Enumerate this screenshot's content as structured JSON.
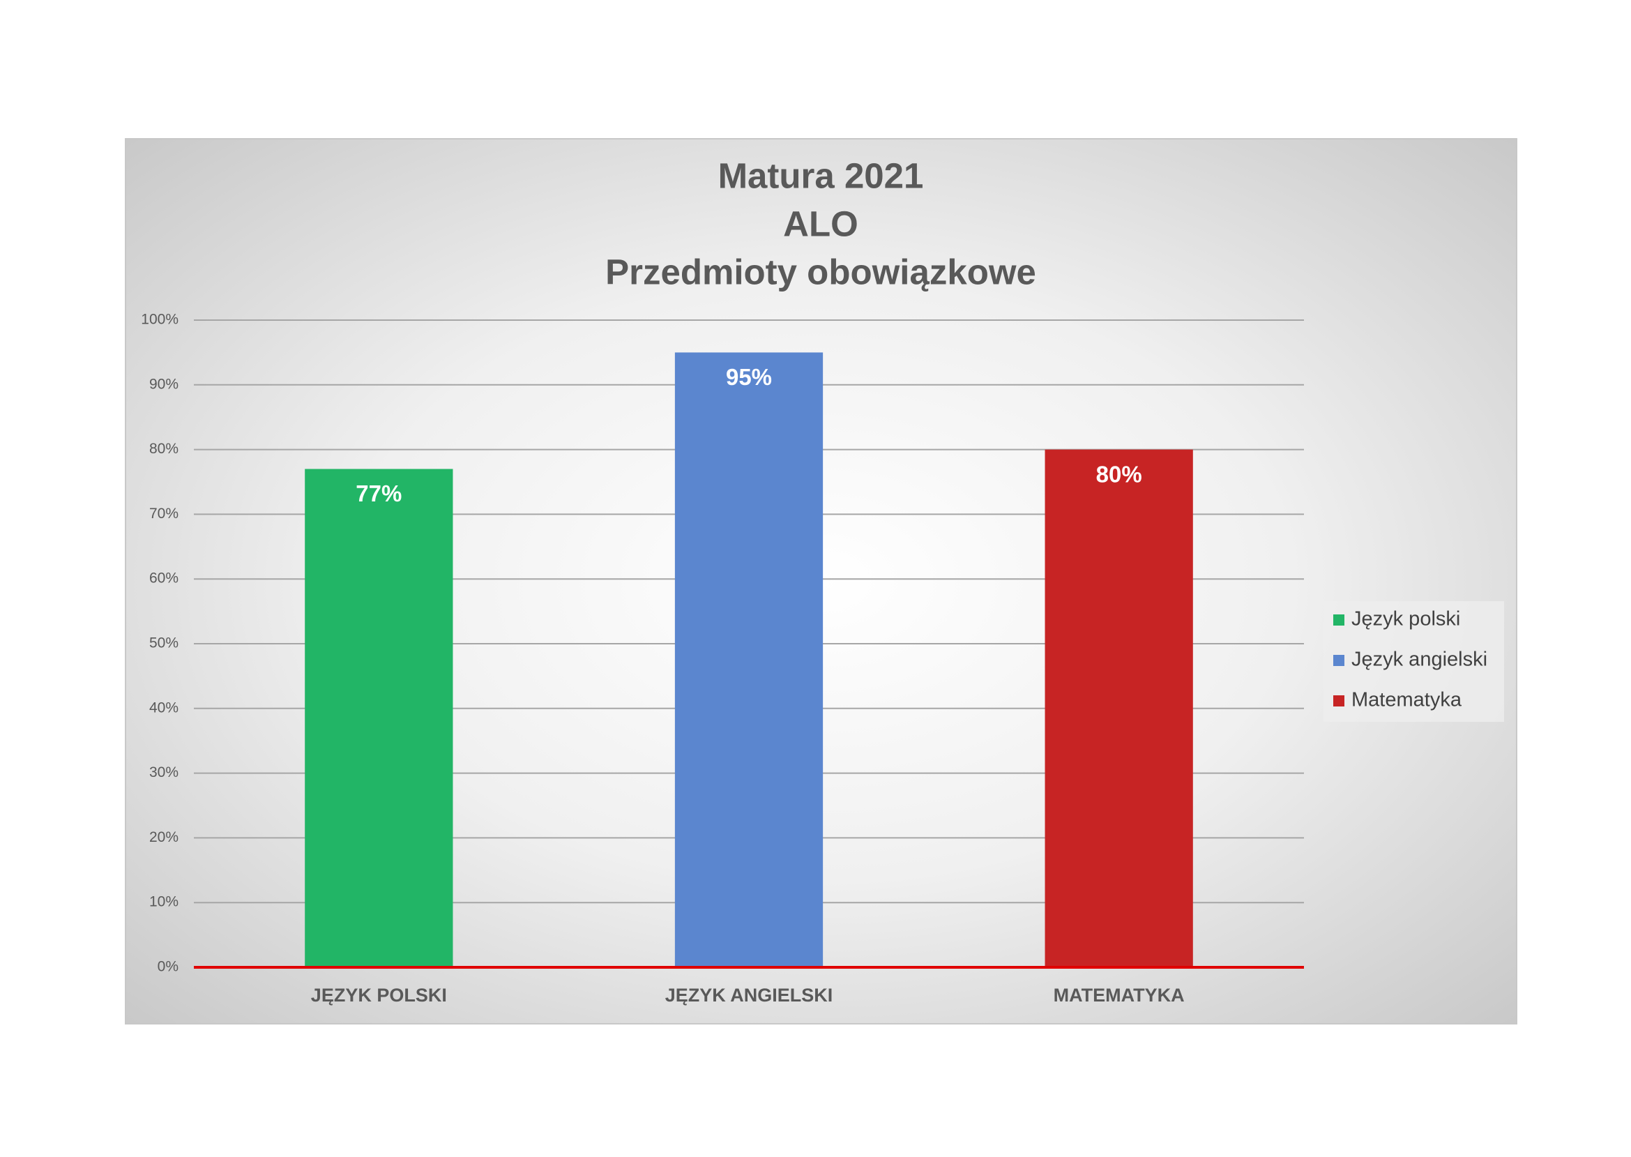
{
  "chart_data": {
    "type": "bar",
    "title": [
      "Matura 2021",
      "ALO",
      "Przedmioty obowiązkowe"
    ],
    "categories": [
      "JĘZYK POLSKI",
      "JĘZYK ANGIELSKI",
      "MATEMATYKA"
    ],
    "series": [
      {
        "name": "Język polski",
        "color": "#22b566",
        "values": [
          77,
          null,
          null
        ],
        "value_labels": [
          "77%",
          null,
          null
        ]
      },
      {
        "name": "Język angielski",
        "color": "#5b86cf",
        "values": [
          null,
          95,
          null
        ],
        "value_labels": [
          null,
          "95%",
          null
        ]
      },
      {
        "name": "Matematyka",
        "color": "#c72424",
        "values": [
          null,
          null,
          80
        ],
        "value_labels": [
          null,
          null,
          "80%"
        ]
      }
    ],
    "ylim": [
      0,
      100
    ],
    "yticks": [
      {
        "value": 0,
        "label": "0%"
      },
      {
        "value": 10,
        "label": "10%"
      },
      {
        "value": 20,
        "label": "20%"
      },
      {
        "value": 30,
        "label": "30%"
      },
      {
        "value": 40,
        "label": "40%"
      },
      {
        "value": 50,
        "label": "50%"
      },
      {
        "value": 60,
        "label": "60%"
      },
      {
        "value": 70,
        "label": "70%"
      },
      {
        "value": 80,
        "label": "80%"
      },
      {
        "value": 90,
        "label": "90%"
      },
      {
        "value": 100,
        "label": "100%"
      }
    ],
    "grid": true,
    "legend": "right"
  }
}
